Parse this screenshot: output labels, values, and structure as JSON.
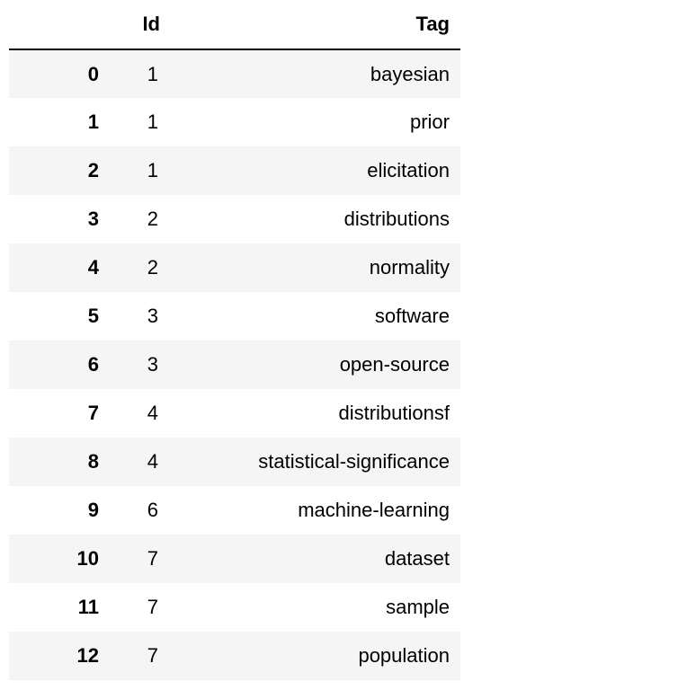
{
  "table": {
    "columns": [
      "",
      "Id",
      "Tag"
    ],
    "rows": [
      {
        "index": "0",
        "id": "1",
        "tag": "bayesian"
      },
      {
        "index": "1",
        "id": "1",
        "tag": "prior"
      },
      {
        "index": "2",
        "id": "1",
        "tag": "elicitation"
      },
      {
        "index": "3",
        "id": "2",
        "tag": "distributions"
      },
      {
        "index": "4",
        "id": "2",
        "tag": "normality"
      },
      {
        "index": "5",
        "id": "3",
        "tag": "software"
      },
      {
        "index": "6",
        "id": "3",
        "tag": "open-source"
      },
      {
        "index": "7",
        "id": "4",
        "tag": "distributionsf"
      },
      {
        "index": "8",
        "id": "4",
        "tag": "statistical-significance"
      },
      {
        "index": "9",
        "id": "6",
        "tag": "machine-learning"
      },
      {
        "index": "10",
        "id": "7",
        "tag": "dataset"
      },
      {
        "index": "11",
        "id": "7",
        "tag": "sample"
      },
      {
        "index": "12",
        "id": "7",
        "tag": "population"
      }
    ]
  },
  "colors": {
    "stripe": "#f5f5f5",
    "header_rule": "#000000"
  }
}
